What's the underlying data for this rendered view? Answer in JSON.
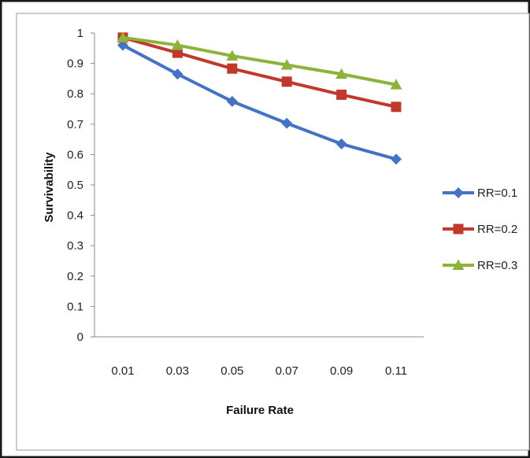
{
  "chart_data": {
    "type": "line",
    "title": "",
    "xlabel": "Failure Rate",
    "ylabel": "Survivability",
    "categories": [
      "0.01",
      "0.03",
      "0.05",
      "0.07",
      "0.09",
      "0.11"
    ],
    "ylim": [
      0,
      1
    ],
    "yticks": [
      "0",
      "0.1",
      "0.2",
      "0.3",
      "0.4",
      "0.5",
      "0.6",
      "0.7",
      "0.8",
      "0.9",
      "1"
    ],
    "grid": false,
    "legend_position": "right",
    "series": [
      {
        "name": "RR=0.1",
        "values": [
          0.96,
          0.865,
          0.775,
          0.703,
          0.635,
          0.585
        ],
        "color": "#4472C4",
        "marker": "diamond"
      },
      {
        "name": "RR=0.2",
        "values": [
          0.985,
          0.935,
          0.883,
          0.84,
          0.797,
          0.757
        ],
        "color": "#C0392B",
        "marker": "square"
      },
      {
        "name": "RR=0.3",
        "values": [
          0.985,
          0.96,
          0.925,
          0.895,
          0.865,
          0.83
        ],
        "color": "#8DB33A",
        "marker": "triangle"
      }
    ]
  }
}
